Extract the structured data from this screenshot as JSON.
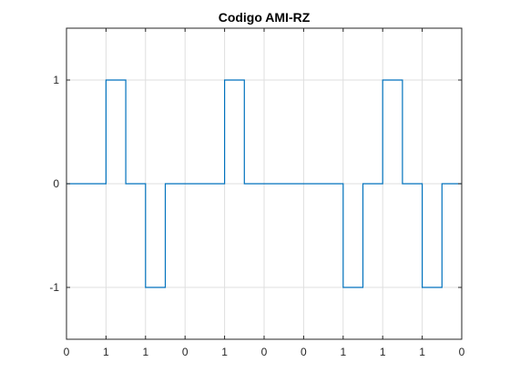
{
  "chart_data": {
    "type": "line",
    "title": "Codigo AMI-RZ",
    "xlabel": "",
    "ylabel": "",
    "bits": [
      "0",
      "1",
      "1",
      "0",
      "1",
      "0",
      "0",
      "1",
      "1",
      "1",
      "0"
    ],
    "x_tick_labels": [
      "0",
      "1",
      "1",
      "0",
      "1",
      "0",
      "0",
      "1",
      "1",
      "1",
      "0"
    ],
    "ylim": [
      -1.5,
      1.5
    ],
    "y_ticks": [
      -1,
      0,
      1
    ],
    "y_tick_labels": [
      "-1",
      "0",
      "1"
    ],
    "grid": true,
    "series": [
      {
        "color": "#0072bd",
        "x": [
          0,
          1,
          1,
          1.5,
          1.5,
          2,
          2,
          2.5,
          2.5,
          4,
          4,
          4.5,
          4.5,
          7,
          7,
          7.5,
          7.5,
          8,
          8,
          8.5,
          8.5,
          9,
          9,
          9.5,
          9.5,
          10
        ],
        "y": [
          0,
          0,
          1,
          1,
          0,
          0,
          -1,
          -1,
          0,
          0,
          1,
          1,
          0,
          0,
          -1,
          -1,
          0,
          0,
          1,
          1,
          0,
          0,
          -1,
          -1,
          0,
          0
        ]
      }
    ]
  }
}
